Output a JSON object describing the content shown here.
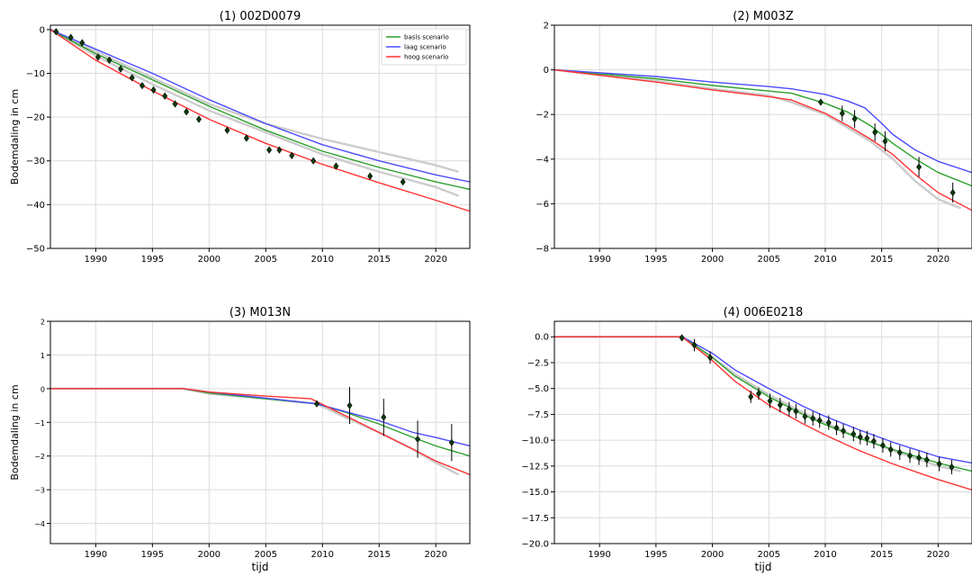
{
  "chart_data": [
    {
      "type": "line",
      "title": "(1) 002D0079",
      "xlabel": "",
      "ylabel": "Bodemdaling in cm",
      "xlim": [
        1986,
        2023
      ],
      "ylim": [
        -50,
        1
      ],
      "xticks": [
        1990,
        1995,
        2000,
        2005,
        2010,
        2015,
        2020
      ],
      "yticks": [
        0,
        -10,
        -20,
        -30,
        -40,
        -50
      ],
      "ytick_labels": [
        "0",
        "−10",
        "−20",
        "−30",
        "−40",
        "−50"
      ],
      "grid": true,
      "legend": {
        "placement": "top-right",
        "entries": [
          {
            "label": "basis scenario",
            "color": "#2ca02c"
          },
          {
            "label": "laag scenario",
            "color": "#4c4cff"
          },
          {
            "label": "hoog scenario",
            "color": "#ff3333"
          }
        ]
      },
      "series": [
        {
          "name": "basis scenario",
          "color": "#2ca02c",
          "x": [
            1986,
            1990,
            1995,
            2000,
            2005,
            2010,
            2015,
            2020,
            2023
          ],
          "y": [
            0,
            -5.5,
            -11.5,
            -17.5,
            -23,
            -27.8,
            -31.5,
            -34.8,
            -36.5
          ]
        },
        {
          "name": "laag scenario",
          "color": "#4c4cff",
          "x": [
            1986,
            1990,
            1995,
            2000,
            2005,
            2010,
            2015,
            2020,
            2023
          ],
          "y": [
            0,
            -4.5,
            -10,
            -16,
            -21.5,
            -26.3,
            -30,
            -33.2,
            -34.8
          ]
        },
        {
          "name": "hoog scenario",
          "color": "#ff3333",
          "x": [
            1986,
            1990,
            1995,
            2000,
            2005,
            2010,
            2015,
            2020,
            2023
          ],
          "y": [
            0,
            -7,
            -14,
            -20.5,
            -26,
            -30.8,
            -35,
            -39,
            -41.5
          ]
        },
        {
          "color": "#cccccc",
          "x": [
            1986,
            1990,
            1995,
            2000,
            2005,
            2010,
            2015,
            2020,
            2022
          ],
          "y": [
            0,
            -5,
            -11,
            -17,
            -21.5,
            -25,
            -28,
            -31,
            -32.5
          ]
        },
        {
          "color": "#cccccc",
          "x": [
            1986,
            1990,
            1995,
            2000,
            2005,
            2010,
            2015,
            2020,
            2022
          ],
          "y": [
            0,
            -6,
            -12.5,
            -18.5,
            -23.5,
            -28.5,
            -32.5,
            -36,
            -38
          ]
        }
      ],
      "points": [
        {
          "x": 1986.5,
          "y": -0.5
        },
        {
          "x": 1987.8,
          "y": -1.8
        },
        {
          "x": 1988.8,
          "y": -3
        },
        {
          "x": 1990.2,
          "y": -6.3
        },
        {
          "x": 1991.2,
          "y": -7
        },
        {
          "x": 1992.2,
          "y": -9
        },
        {
          "x": 1993.2,
          "y": -11
        },
        {
          "x": 1994.1,
          "y": -12.8
        },
        {
          "x": 1995.1,
          "y": -13.8
        },
        {
          "x": 1996.1,
          "y": -15.2
        },
        {
          "x": 1997,
          "y": -17
        },
        {
          "x": 1998,
          "y": -18.8
        },
        {
          "x": 1999.1,
          "y": -20.5
        },
        {
          "x": 2001.6,
          "y": -23
        },
        {
          "x": 2003.3,
          "y": -24.8
        },
        {
          "x": 2005.3,
          "y": -27.5
        },
        {
          "x": 2006.2,
          "y": -27.5
        },
        {
          "x": 2007.3,
          "y": -28.8
        },
        {
          "x": 2009.2,
          "y": -30
        },
        {
          "x": 2011.2,
          "y": -31.2
        },
        {
          "x": 2014.2,
          "y": -33.5
        },
        {
          "x": 2017.1,
          "y": -34.8
        }
      ]
    },
    {
      "type": "line",
      "title": "(2) M003Z",
      "xlabel": "",
      "ylabel": "",
      "xlim": [
        1986,
        2023
      ],
      "ylim": [
        -8,
        2
      ],
      "xticks": [
        1990,
        1995,
        2000,
        2005,
        2010,
        2015,
        2020
      ],
      "yticks": [
        2,
        0,
        -2,
        -4,
        -6,
        -8
      ],
      "ytick_labels": [
        "2",
        "0",
        "−2",
        "−4",
        "−6",
        "−8"
      ],
      "grid": true,
      "series": [
        {
          "name": "basis scenario",
          "color": "#2ca02c",
          "x": [
            1986,
            1995,
            2000,
            2005,
            2007,
            2010,
            2012,
            2014,
            2016,
            2018,
            2020,
            2023
          ],
          "y": [
            0,
            -0.4,
            -0.7,
            -0.95,
            -1.05,
            -1.5,
            -1.9,
            -2.5,
            -3.3,
            -4,
            -4.6,
            -5.2
          ]
        },
        {
          "name": "laag scenario",
          "color": "#4c4cff",
          "x": [
            1986,
            1995,
            2000,
            2005,
            2007,
            2010,
            2012,
            2013.5,
            2015,
            2016,
            2018,
            2020,
            2023
          ],
          "y": [
            0,
            -0.3,
            -0.55,
            -0.75,
            -0.85,
            -1.1,
            -1.4,
            -1.7,
            -2.4,
            -2.9,
            -3.6,
            -4.1,
            -4.6
          ]
        },
        {
          "name": "hoog scenario",
          "color": "#ff3333",
          "x": [
            1986,
            1995,
            2000,
            2005,
            2007,
            2010,
            2012,
            2014,
            2016,
            2018,
            2020,
            2023
          ],
          "y": [
            0,
            -0.55,
            -0.9,
            -1.2,
            -1.35,
            -1.95,
            -2.5,
            -3.1,
            -3.8,
            -4.7,
            -5.5,
            -6.3
          ]
        },
        {
          "color": "#cccccc",
          "x": [
            1986,
            1995,
            2000,
            2005,
            2007,
            2010,
            2012,
            2014,
            2016,
            2018,
            2020,
            2022
          ],
          "y": [
            0,
            -0.5,
            -0.85,
            -1.15,
            -1.45,
            -2,
            -2.6,
            -3.2,
            -4,
            -5,
            -5.8,
            -6.2
          ]
        }
      ],
      "points": [
        {
          "x": 2009.6,
          "y": -1.45,
          "err": 0.08
        },
        {
          "x": 2011.5,
          "y": -1.95,
          "err": 0.35
        },
        {
          "x": 2012.6,
          "y": -2.2,
          "err": 0.4
        },
        {
          "x": 2014.4,
          "y": -2.8,
          "err": 0.4
        },
        {
          "x": 2015.3,
          "y": -3.2,
          "err": 0.45
        },
        {
          "x": 2018.3,
          "y": -4.35,
          "err": 0.45
        },
        {
          "x": 2021.3,
          "y": -5.5,
          "err": 0.45
        }
      ]
    },
    {
      "type": "line",
      "title": "(3) M013N",
      "xlabel": "tijd",
      "ylabel": "Bodemdaling in cm",
      "xlim": [
        1986,
        2023
      ],
      "ylim": [
        -4.6,
        2
      ],
      "xticks": [
        1990,
        1995,
        2000,
        2005,
        2010,
        2015,
        2020
      ],
      "yticks": [
        2,
        1,
        0,
        -1,
        -2,
        -3,
        -4
      ],
      "ytick_labels": [
        "2",
        "1",
        "0",
        "−1",
        "−2",
        "−3",
        "−4"
      ],
      "grid": true,
      "series": [
        {
          "name": "basis scenario",
          "color": "#2ca02c",
          "x": [
            1986,
            1997.7,
            2000,
            2005,
            2009.5,
            2012,
            2015,
            2018,
            2020,
            2023
          ],
          "y": [
            0,
            0,
            -0.13,
            -0.3,
            -0.45,
            -0.7,
            -1.05,
            -1.45,
            -1.7,
            -2
          ]
        },
        {
          "name": "laag scenario",
          "color": "#4c4cff",
          "x": [
            1986,
            1997.7,
            2000,
            2005,
            2009.5,
            2012,
            2015,
            2018,
            2020,
            2023
          ],
          "y": [
            0,
            0,
            -0.1,
            -0.28,
            -0.45,
            -0.68,
            -0.95,
            -1.3,
            -1.45,
            -1.7
          ]
        },
        {
          "name": "hoog scenario",
          "color": "#ff3333",
          "x": [
            1986,
            1997.7,
            2000,
            2005,
            2009,
            2012,
            2015,
            2018,
            2020,
            2023
          ],
          "y": [
            0,
            0,
            -0.1,
            -0.22,
            -0.3,
            -0.8,
            -1.3,
            -1.8,
            -2.15,
            -2.55
          ]
        },
        {
          "color": "#cccccc",
          "x": [
            1986,
            1997.7,
            2000,
            2005,
            2009.5,
            2012,
            2015,
            2018,
            2020,
            2022
          ],
          "y": [
            0,
            0,
            -0.15,
            -0.3,
            -0.45,
            -0.85,
            -1.3,
            -1.8,
            -2.2,
            -2.55
          ]
        }
      ],
      "points": [
        {
          "x": 2009.5,
          "y": -0.45,
          "err": 0.05
        },
        {
          "x": 2012.4,
          "y": -0.5,
          "err": 0.55
        },
        {
          "x": 2015.4,
          "y": -0.85,
          "err": 0.55
        },
        {
          "x": 2018.4,
          "y": -1.5,
          "err": 0.55
        },
        {
          "x": 2021.4,
          "y": -1.6,
          "err": 0.55
        }
      ]
    },
    {
      "type": "line",
      "title": "(4) 006E0218",
      "xlabel": "tijd",
      "ylabel": "",
      "xlim": [
        1986,
        2023
      ],
      "ylim": [
        -20,
        1.5
      ],
      "xticks": [
        1990,
        1995,
        2000,
        2005,
        2010,
        2015,
        2020
      ],
      "yticks": [
        0,
        -2.5,
        -5,
        -7.5,
        -10,
        -12.5,
        -15,
        -17.5,
        -20
      ],
      "ytick_labels": [
        "0.0",
        "−2.5",
        "−5.0",
        "−7.5",
        "−10.0",
        "−12.5",
        "−15.0",
        "−17.5",
        "−20.0"
      ],
      "grid": true,
      "series": [
        {
          "name": "basis scenario",
          "color": "#2ca02c",
          "x": [
            1986,
            1997.3,
            1998,
            2000,
            2002,
            2005,
            2008,
            2010,
            2013,
            2016,
            2020,
            2023
          ],
          "y": [
            0,
            0,
            -0.5,
            -2,
            -3.8,
            -5.8,
            -7.5,
            -8.5,
            -9.8,
            -10.9,
            -12.2,
            -13
          ]
        },
        {
          "name": "laag scenario",
          "color": "#4c4cff",
          "x": [
            1986,
            1997.3,
            1998,
            2000,
            2002,
            2005,
            2008,
            2010,
            2013,
            2016,
            2020,
            2023
          ],
          "y": [
            0,
            0,
            -0.4,
            -1.6,
            -3.2,
            -5,
            -6.7,
            -7.7,
            -9,
            -10.2,
            -11.6,
            -12.2
          ]
        },
        {
          "name": "hoog scenario",
          "color": "#ff3333",
          "x": [
            1986,
            1997.3,
            1998,
            2000,
            2002,
            2005,
            2008,
            2010,
            2013,
            2016,
            2020,
            2023
          ],
          "y": [
            0,
            0,
            -0.6,
            -2.3,
            -4.3,
            -6.6,
            -8.4,
            -9.5,
            -11,
            -12.3,
            -13.8,
            -14.8
          ]
        },
        {
          "color": "#cccccc",
          "x": [
            1986,
            1997.3,
            1998,
            2000,
            2002,
            2005,
            2008,
            2010,
            2013,
            2016,
            2020,
            2022
          ],
          "y": [
            0,
            0,
            -0.5,
            -2,
            -3.6,
            -5.6,
            -7.3,
            -8.3,
            -9.8,
            -11,
            -12.5,
            -13
          ]
        }
      ],
      "points": [
        {
          "x": 1997.3,
          "y": -0.1,
          "err": 0.2
        },
        {
          "x": 1998.4,
          "y": -0.8,
          "err": 0.6
        },
        {
          "x": 1999.8,
          "y": -2,
          "err": 0.6
        },
        {
          "x": 2003.4,
          "y": -5.8,
          "err": 0.6
        },
        {
          "x": 2004.1,
          "y": -5.5,
          "err": 0.6
        },
        {
          "x": 2005.1,
          "y": -6.2,
          "err": 0.7
        },
        {
          "x": 2006,
          "y": -6.6,
          "err": 0.7
        },
        {
          "x": 2006.8,
          "y": -7,
          "err": 0.7
        },
        {
          "x": 2007.4,
          "y": -7.2,
          "err": 0.7
        },
        {
          "x": 2008.2,
          "y": -7.7,
          "err": 0.7
        },
        {
          "x": 2008.9,
          "y": -7.9,
          "err": 0.7
        },
        {
          "x": 2009.5,
          "y": -8.1,
          "err": 0.7
        },
        {
          "x": 2010.3,
          "y": -8.3,
          "err": 0.7
        },
        {
          "x": 2011,
          "y": -8.8,
          "err": 0.7
        },
        {
          "x": 2011.6,
          "y": -9.1,
          "err": 0.7
        },
        {
          "x": 2012.5,
          "y": -9.4,
          "err": 0.7
        },
        {
          "x": 2013.1,
          "y": -9.7,
          "err": 0.7
        },
        {
          "x": 2013.7,
          "y": -9.8,
          "err": 0.7
        },
        {
          "x": 2014.3,
          "y": -10.1,
          "err": 0.7
        },
        {
          "x": 2015.1,
          "y": -10.5,
          "err": 0.7
        },
        {
          "x": 2015.8,
          "y": -10.9,
          "err": 0.7
        },
        {
          "x": 2016.6,
          "y": -11.2,
          "err": 0.7
        },
        {
          "x": 2017.5,
          "y": -11.5,
          "err": 0.7
        },
        {
          "x": 2018.3,
          "y": -11.7,
          "err": 0.7
        },
        {
          "x": 2019,
          "y": -11.9,
          "err": 0.7
        },
        {
          "x": 2020.1,
          "y": -12.3,
          "err": 0.7
        },
        {
          "x": 2021.2,
          "y": -12.6,
          "err": 0.7
        }
      ]
    }
  ]
}
